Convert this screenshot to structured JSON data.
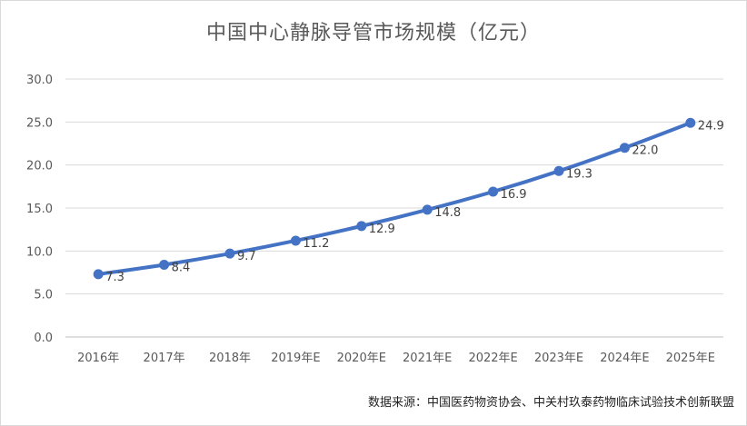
{
  "chart_data": {
    "type": "line",
    "title": "中国中心静脉导管市场规模（亿元）",
    "categories": [
      "2016年",
      "2017年",
      "2018年",
      "2019年E",
      "2020年E",
      "2021年E",
      "2022年E",
      "2023年E",
      "2024年E",
      "2025年E"
    ],
    "series": [
      {
        "values": [
          7.3,
          8.4,
          9.7,
          11.2,
          12.9,
          14.8,
          16.9,
          19.3,
          22.0,
          24.9
        ]
      }
    ],
    "data_labels": [
      "7.3",
      "8.4",
      "9.7",
      "11.2",
      "12.9",
      "14.8",
      "16.9",
      "19.3",
      "22.0",
      "24.9"
    ],
    "y_ticks": [
      "0.0",
      "5.0",
      "10.0",
      "15.0",
      "20.0",
      "25.0",
      "30.0"
    ],
    "ylim": [
      0,
      30
    ],
    "grid": true,
    "legend": "none",
    "line_color": "#4472C4",
    "source": "数据来源：中国医药物资协会、中关村玖泰药物临床试验技术创新联盟"
  }
}
